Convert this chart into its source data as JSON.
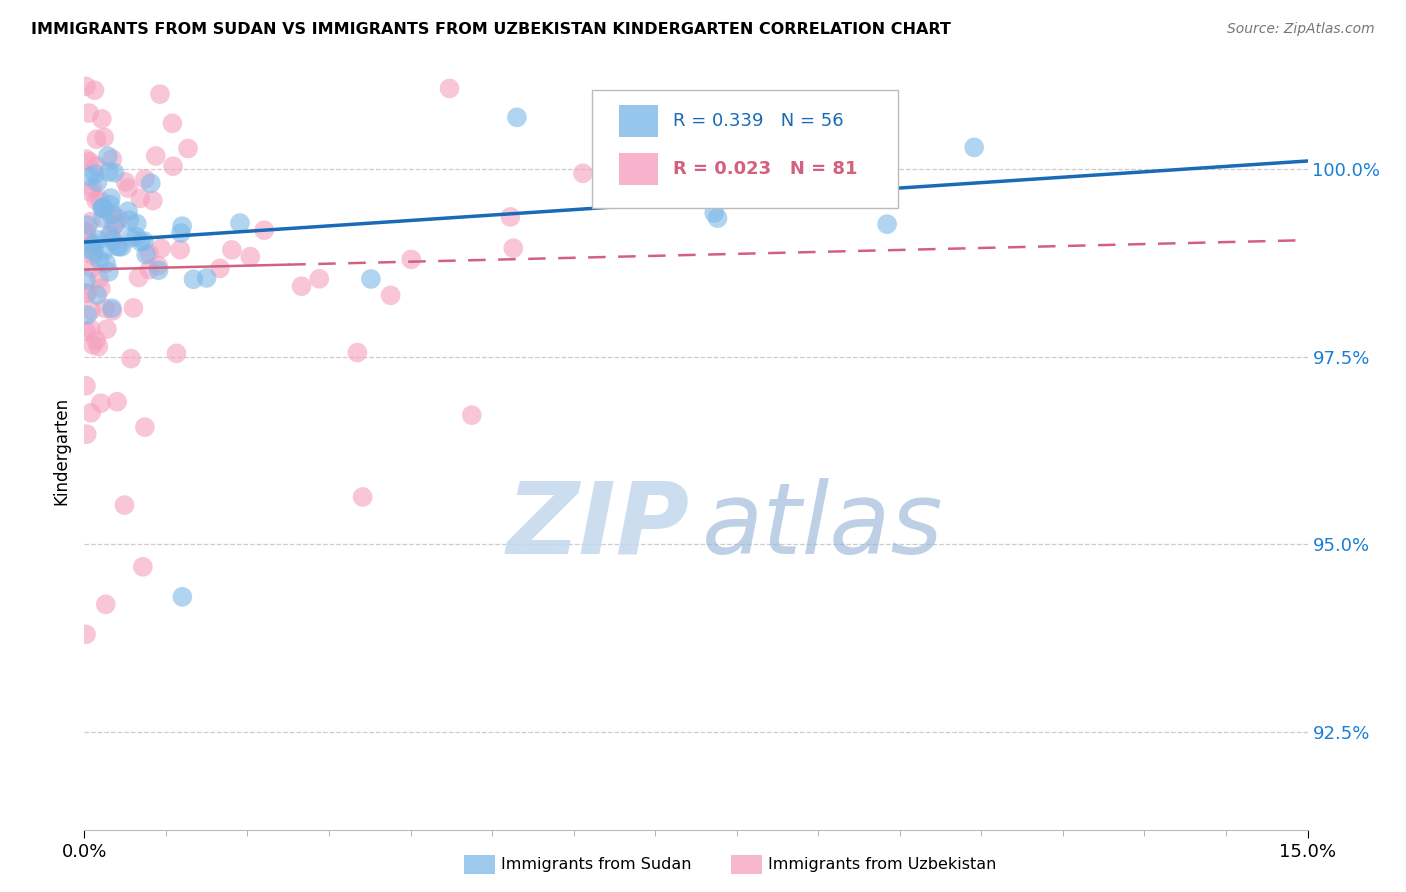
{
  "title": "IMMIGRANTS FROM SUDAN VS IMMIGRANTS FROM UZBEKISTAN KINDERGARTEN CORRELATION CHART",
  "source": "Source: ZipAtlas.com",
  "ylabel": "Kindergarten",
  "ytick_labels": [
    "92.5%",
    "95.0%",
    "97.5%",
    "100.0%"
  ],
  "ytick_values": [
    92.5,
    95.0,
    97.5,
    100.0
  ],
  "xmin": 0.0,
  "xmax": 15.0,
  "ymin": 91.2,
  "ymax": 101.3,
  "sudan_color": "#7db8e8",
  "uzbekistan_color": "#f5a0be",
  "sudan_R": 0.339,
  "sudan_N": 56,
  "uzbekistan_R": 0.023,
  "uzbekistan_N": 81,
  "sudan_line_color": "#1a6bb5",
  "uzbekistan_line_color": "#d46080",
  "legend_sudan_text_color": "#1a6bb5",
  "legend_uzbekistan_text_color": "#d46080",
  "ytick_color": "#1a7fd4",
  "grid_color": "#cccccc",
  "watermark_zip_color": "#c5d8ee",
  "watermark_atlas_color": "#9ab8d8"
}
